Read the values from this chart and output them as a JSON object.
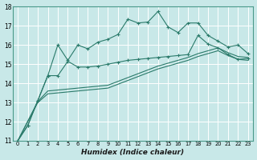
{
  "xlabel": "Humidex (Indice chaleur)",
  "bg_color": "#c8e8e8",
  "grid_color": "#ffffff",
  "line_color": "#2a7a6a",
  "xlim": [
    -0.5,
    23.5
  ],
  "ylim": [
    11,
    18
  ],
  "xticks": [
    0,
    1,
    2,
    3,
    4,
    5,
    6,
    7,
    8,
    9,
    10,
    11,
    12,
    13,
    14,
    15,
    16,
    17,
    18,
    19,
    20,
    21,
    22,
    23
  ],
  "yticks": [
    11,
    12,
    13,
    14,
    15,
    16,
    17,
    18
  ],
  "line1_x": [
    0,
    1,
    2,
    3,
    4,
    5,
    6,
    7,
    8,
    9,
    10,
    11,
    12,
    13,
    14,
    15,
    16,
    17,
    18,
    19,
    20,
    21,
    22,
    23
  ],
  "line1_y": [
    11.0,
    11.8,
    13.1,
    14.4,
    16.0,
    15.2,
    16.0,
    15.8,
    16.15,
    16.3,
    16.55,
    17.35,
    17.15,
    17.2,
    17.75,
    16.95,
    16.65,
    17.15,
    17.15,
    16.5,
    16.2,
    15.9,
    16.0,
    15.55
  ],
  "line2_x": [
    0,
    1,
    2,
    3,
    4,
    5,
    6,
    7,
    8,
    9,
    10,
    11,
    12,
    13,
    14,
    15,
    16,
    17,
    18,
    19,
    20,
    21,
    22,
    23
  ],
  "line2_y": [
    11.0,
    11.8,
    13.1,
    14.4,
    14.4,
    15.15,
    14.85,
    14.85,
    14.9,
    15.0,
    15.1,
    15.2,
    15.25,
    15.3,
    15.35,
    15.4,
    15.45,
    15.5,
    16.5,
    16.05,
    15.85,
    15.5,
    15.25,
    15.3
  ],
  "line3_x": [
    0,
    2,
    3,
    4,
    5,
    6,
    7,
    8,
    9,
    10,
    11,
    12,
    13,
    14,
    15,
    16,
    17,
    18,
    19,
    20,
    21,
    22,
    23
  ],
  "line3_y": [
    11.0,
    13.05,
    13.6,
    13.65,
    13.7,
    13.75,
    13.8,
    13.85,
    13.9,
    14.1,
    14.3,
    14.5,
    14.7,
    14.9,
    15.05,
    15.2,
    15.35,
    15.55,
    15.7,
    15.85,
    15.6,
    15.4,
    15.35
  ],
  "line4_x": [
    0,
    2,
    3,
    4,
    5,
    6,
    7,
    8,
    9,
    10,
    11,
    12,
    13,
    14,
    15,
    16,
    17,
    18,
    19,
    20,
    21,
    22,
    23
  ],
  "line4_y": [
    11.0,
    13.0,
    13.45,
    13.5,
    13.55,
    13.6,
    13.65,
    13.7,
    13.75,
    13.95,
    14.15,
    14.35,
    14.55,
    14.75,
    14.9,
    15.05,
    15.2,
    15.4,
    15.55,
    15.7,
    15.45,
    15.25,
    15.2
  ]
}
